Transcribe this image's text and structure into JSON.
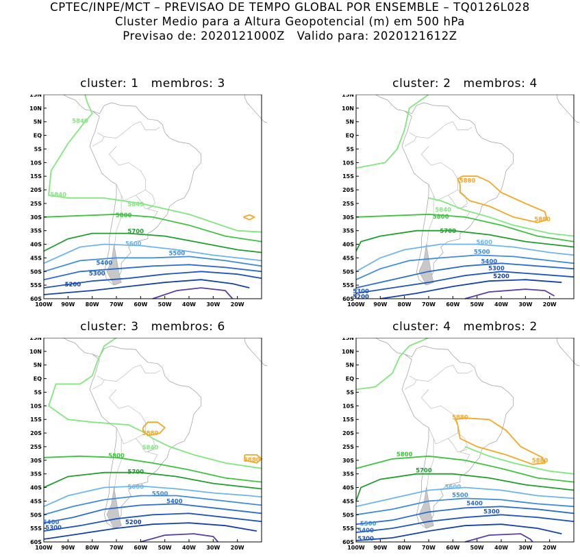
{
  "header": {
    "line1": "CPTEC/INPE/MCT – PREVISAO DE TEMPO GLOBAL POR ENSEMBLE – TQ0126L028",
    "line2": "Cluster Medio para a Altura Geopotencial (m) em 500 hPa",
    "line3_label1": "Previsao de:",
    "line3_value1": "2020121000Z",
    "line3_label2": "Valido para:",
    "line3_value2": "2020121612Z"
  },
  "axes": {
    "lat_ticks": [
      "15N",
      "10N",
      "5N",
      "EQ",
      "5S",
      "10S",
      "15S",
      "20S",
      "25S",
      "30S",
      "35S",
      "40S",
      "45S",
      "50S",
      "55S",
      "60S"
    ],
    "lon_ticks": [
      "100W",
      "90W",
      "80W",
      "70W",
      "60W",
      "50W",
      "40W",
      "30W",
      "20W"
    ]
  },
  "colors": {
    "c5880": "#f5a623",
    "c5840": "#7ee87a",
    "c5800": "#3cc43c",
    "c5700": "#1d9e2a",
    "c5600": "#6ab4f0",
    "c5500": "#3b8be0",
    "c5400": "#2a6cd0",
    "c5300": "#1d55c0",
    "c5200": "#1240a8",
    "c5100": "#5a3aa8"
  },
  "panels": [
    {
      "cluster_label": "cluster:",
      "cluster": "1",
      "members_label": "membros:",
      "members": "3",
      "labels": [
        "5840",
        "5840",
        "5840",
        "5800",
        "5700",
        "5600",
        "5500",
        "5400",
        "5300",
        "5200"
      ]
    },
    {
      "cluster_label": "cluster:",
      "cluster": "2",
      "members_label": "membros:",
      "members": "4",
      "labels": [
        "5880",
        "5880",
        "5840",
        "5800",
        "5700",
        "5600",
        "5500",
        "5400",
        "5300",
        "5200",
        "5300",
        "5200"
      ]
    },
    {
      "cluster_label": "cluster:",
      "cluster": "3",
      "members_label": "membros:",
      "members": "6",
      "labels": [
        "5880",
        "5880",
        "5840",
        "5800",
        "5700",
        "5600",
        "5500",
        "5400",
        "5400",
        "5300",
        "5200"
      ]
    },
    {
      "cluster_label": "cluster:",
      "cluster": "4",
      "members_label": "membros:",
      "members": "2",
      "labels": [
        "5880",
        "5880",
        "5800",
        "5700",
        "5600",
        "5500",
        "5400",
        "5300",
        "5500",
        "5400",
        "5300"
      ]
    }
  ]
}
